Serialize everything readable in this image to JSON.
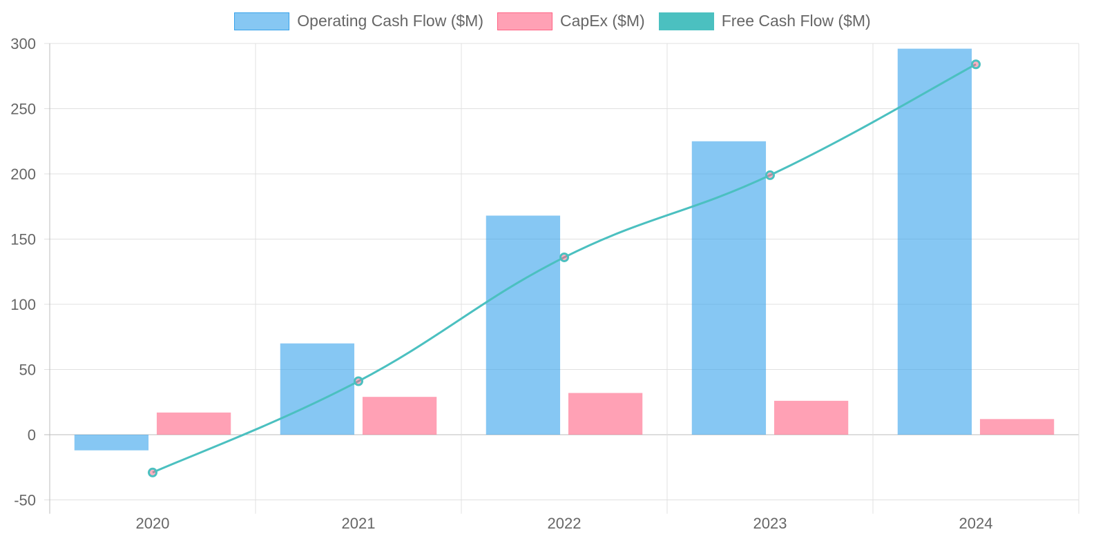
{
  "chart_data": {
    "type": "bar",
    "title": "",
    "xlabel": "",
    "ylabel": "",
    "categories": [
      "2020",
      "2021",
      "2022",
      "2023",
      "2024"
    ],
    "ylim": [
      -50,
      300
    ],
    "yticks": [
      "300",
      "250",
      "200",
      "150",
      "100",
      "50",
      "0",
      "-50"
    ],
    "ytick_values": [
      300,
      250,
      200,
      150,
      100,
      50,
      0,
      -50
    ],
    "grid": true,
    "legend_position": "top",
    "series": [
      {
        "name": "Operating Cash Flow ($M)",
        "type": "bar",
        "color": "#36a2eb",
        "values": [
          -12,
          70,
          168,
          225,
          296
        ]
      },
      {
        "name": "CapEx ($M)",
        "type": "bar",
        "color": "#ff6384",
        "values": [
          17,
          29,
          32,
          26,
          12
        ]
      },
      {
        "name": "Free Cash Flow ($M)",
        "type": "line",
        "color": "#4bc0c0",
        "values": [
          -29,
          41,
          136,
          199,
          284
        ]
      }
    ]
  }
}
